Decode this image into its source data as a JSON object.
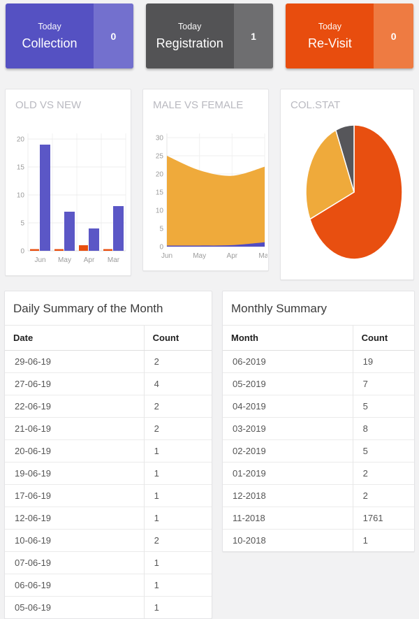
{
  "stat_cards": [
    {
      "period": "Today",
      "label": "Collection",
      "value": "0",
      "color": "#5551c2",
      "value_bg": "#7370ce"
    },
    {
      "period": "Today",
      "label": "Registration",
      "value": "1",
      "color": "#535355",
      "value_bg": "#6e6e70"
    },
    {
      "period": "Today",
      "label": "Re-Visit",
      "value": "0",
      "color": "#e84d0e",
      "value_bg": "#ee7b42"
    }
  ],
  "chart_data": [
    {
      "type": "bar",
      "title": "OLD VS NEW",
      "categories": [
        "Jun",
        "May",
        "Apr",
        "Mar"
      ],
      "series": [
        {
          "name": "old",
          "color": "#e84f10",
          "values": [
            0.3,
            0.3,
            1,
            0.3
          ]
        },
        {
          "name": "new",
          "color": "#5b57c6",
          "values": [
            19,
            7,
            4,
            8
          ]
        }
      ],
      "ylim": [
        0,
        20
      ],
      "yticks": [
        0,
        5,
        10,
        15,
        20
      ],
      "grid": true,
      "legend": "none"
    },
    {
      "type": "area",
      "title": "MALE VS FEMALE",
      "x": [
        "Jun",
        "May",
        "Apr",
        "Mar"
      ],
      "series": [
        {
          "name": "female",
          "color": "#efaa3b",
          "values": [
            25,
            21,
            19.5,
            22
          ]
        },
        {
          "name": "male",
          "color": "#514cc3",
          "values": [
            0.3,
            0.3,
            0.4,
            1.2
          ]
        }
      ],
      "ylim": [
        0,
        30
      ],
      "yticks": [
        0,
        5,
        10,
        15,
        20,
        25,
        30
      ],
      "grid": true,
      "legend": "none"
    },
    {
      "type": "pie",
      "title": "COL.STAT",
      "slices": [
        {
          "name": "orange-slice",
          "color": "#e84f10",
          "percent": 68.4
        },
        {
          "name": "amber-slice",
          "color": "#efaa3b",
          "percent": 25.4
        },
        {
          "name": "gray-slice",
          "color": "#56565a",
          "percent": 6.2
        }
      ],
      "legend": "none"
    }
  ],
  "daily_table": {
    "title": "Daily Summary of the Month",
    "columns": [
      "Date",
      "Count"
    ],
    "rows": [
      [
        "29-06-19",
        "2"
      ],
      [
        "27-06-19",
        "4"
      ],
      [
        "22-06-19",
        "2"
      ],
      [
        "21-06-19",
        "2"
      ],
      [
        "20-06-19",
        "1"
      ],
      [
        "19-06-19",
        "1"
      ],
      [
        "17-06-19",
        "1"
      ],
      [
        "12-06-19",
        "1"
      ],
      [
        "10-06-19",
        "2"
      ],
      [
        "07-06-19",
        "1"
      ],
      [
        "06-06-19",
        "1"
      ],
      [
        "05-06-19",
        "1"
      ]
    ]
  },
  "monthly_table": {
    "title": "Monthly Summary",
    "columns": [
      "Month",
      "Count"
    ],
    "rows": [
      [
        "06-2019",
        "19"
      ],
      [
        "05-2019",
        "7"
      ],
      [
        "04-2019",
        "5"
      ],
      [
        "03-2019",
        "8"
      ],
      [
        "02-2019",
        "5"
      ],
      [
        "01-2019",
        "2"
      ],
      [
        "12-2018",
        "2"
      ],
      [
        "11-2018",
        "1761"
      ],
      [
        "10-2018",
        "1"
      ]
    ]
  }
}
